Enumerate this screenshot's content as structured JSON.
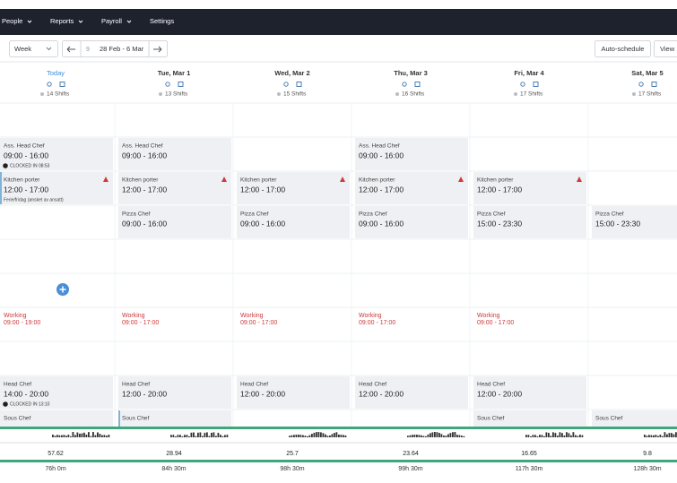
{
  "nav": [
    "People",
    "Reports",
    "Payroll",
    "Settings"
  ],
  "toolbar": {
    "view": "Week",
    "week_number": "9",
    "date_range": "28 Feb - 6 Mar",
    "auto_schedule": "Auto-schedule",
    "view_button": "View"
  },
  "days": [
    {
      "label": "Today",
      "shifts": "14 Shifts",
      "today": true
    },
    {
      "label": "Tue, Mar 1",
      "shifts": "13 Shifts"
    },
    {
      "label": "Wed, Mar 2",
      "shifts": "15 Shifts"
    },
    {
      "label": "Thu, Mar 3",
      "shifts": "16 Shifts"
    },
    {
      "label": "Fri, Mar 4",
      "shifts": "17 Shifts"
    },
    {
      "label": "Sat, Mar 5",
      "shifts": "17 Shifts"
    }
  ],
  "rows": [
    [
      {
        "role": "Ass. Head Chef",
        "time": "09:00 - 16:00",
        "status": "CLOCKED IN 08:53"
      },
      {
        "role": "Ass. Head Chef",
        "time": "09:00 - 16:00"
      },
      null,
      {
        "role": "Ass. Head Chef",
        "time": "09:00 - 16:00"
      },
      null,
      null
    ],
    [
      {
        "role": "Kitchen porter",
        "time": "12:00 - 17:00",
        "note": "Ferie/fridag (ønsket av ansatt)",
        "warning": true,
        "highlight": true
      },
      {
        "role": "Kitchen porter",
        "time": "12:00 - 17:00",
        "warning": true
      },
      {
        "role": "Kitchen porter",
        "time": "12:00 - 17:00",
        "warning": true
      },
      {
        "role": "Kitchen porter",
        "time": "12:00 - 17:00",
        "warning": true
      },
      {
        "role": "Kitchen porter",
        "time": "12:00 - 17:00",
        "warning": true
      },
      null
    ],
    [
      null,
      {
        "role": "Pizza Chef",
        "time": "09:00 - 16:00"
      },
      {
        "role": "Pizza Chef",
        "time": "09:00 - 16:00"
      },
      {
        "role": "Pizza Chef",
        "time": "09:00 - 16:00"
      },
      {
        "role": "Pizza Chef",
        "time": "15:00 - 23:30"
      },
      {
        "role": "Pizza Chef",
        "time": "15:00 - 23:30"
      }
    ],
    [
      {
        "label": "Working",
        "time": "09:00 - 19:00"
      },
      {
        "label": "Working",
        "time": "09:00 - 17:00"
      },
      {
        "label": "Working",
        "time": "09:00 - 17:00"
      },
      {
        "label": "Working",
        "time": "09:00 - 17:00"
      },
      {
        "label": "Working",
        "time": "09:00 - 17:00"
      },
      null
    ],
    [
      {
        "role": "Head Chef",
        "time": "14:00 - 20:00",
        "status": "CLOCKED IN 13:10"
      },
      {
        "role": "Head Chef",
        "time": "12:00 - 20:00"
      },
      {
        "role": "Head Chef",
        "time": "12:00 - 20:00"
      },
      {
        "role": "Head Chef",
        "time": "12:00 - 20:00"
      },
      {
        "role": "Head Chef",
        "time": "12:00 - 20:00"
      },
      null
    ],
    [
      {
        "role": "Sous Chef"
      },
      {
        "role": "Sous Chef",
        "highlight": true
      },
      null,
      null,
      {
        "role": "Sous Chef"
      },
      {
        "role": "Sous Chef"
      }
    ]
  ],
  "totals": [
    {
      "cost": 57.62,
      "hours": "76h 0m"
    },
    {
      "cost": 28.94,
      "hours": "84h 30m"
    },
    {
      "cost": 25.7,
      "hours": "98h 30m"
    },
    {
      "cost": 23.64,
      "hours": "99h 30m"
    },
    {
      "cost": 16.65,
      "hours": "117h 30m"
    },
    {
      "cost": 9.8,
      "hours": "128h 30m"
    }
  ]
}
